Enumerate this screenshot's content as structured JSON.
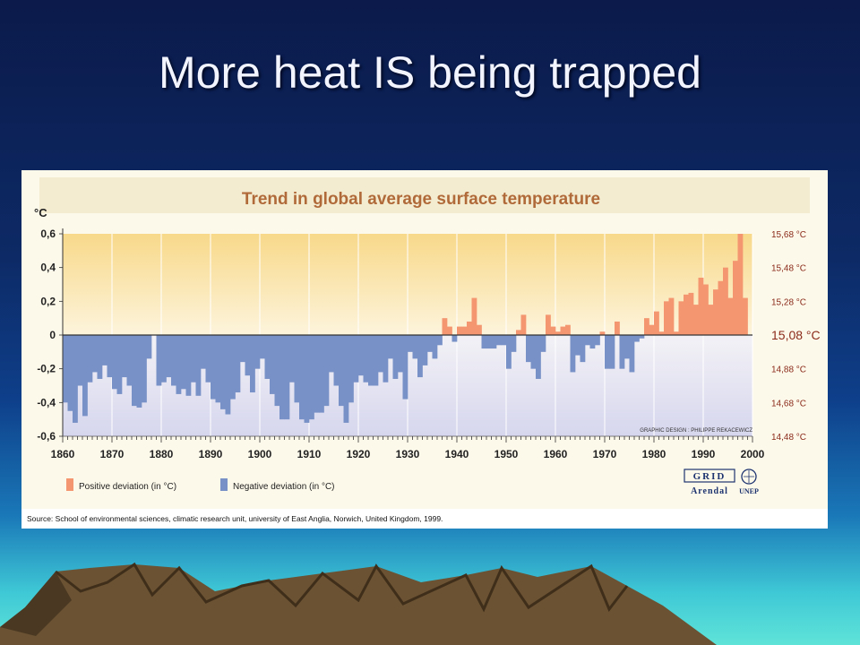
{
  "slide": {
    "title": "More heat IS being trapped"
  },
  "chart_data": {
    "type": "bar",
    "title": "Trend in global average surface temperature",
    "ylabel": "°C",
    "ylim": [
      -0.6,
      0.6
    ],
    "xlim": [
      1860,
      2000
    ],
    "x_ticks": [
      "1860",
      "1870",
      "1880",
      "1890",
      "1900",
      "1910",
      "1920",
      "1930",
      "1940",
      "1950",
      "1960",
      "1970",
      "1980",
      "1990",
      "2000"
    ],
    "y_ticks": [
      "0,6",
      "0,4",
      "0,2",
      "0",
      "-0,2",
      "-0,4",
      "-0,6"
    ],
    "right_ticks": [
      {
        "value": 0.6,
        "label": "15,68 °C"
      },
      {
        "value": 0.4,
        "label": "15,48 °C"
      },
      {
        "value": 0.2,
        "label": "15,28 °C"
      },
      {
        "value": 0.0,
        "label": "15,08 °C"
      },
      {
        "value": -0.2,
        "label": "14,88 °C"
      },
      {
        "value": -0.4,
        "label": "14,68 °C"
      },
      {
        "value": -0.6,
        "label": "14,48 °C"
      }
    ],
    "start_year": 1860,
    "values": [
      -0.4,
      -0.45,
      -0.52,
      -0.3,
      -0.48,
      -0.28,
      -0.22,
      -0.26,
      -0.18,
      -0.25,
      -0.32,
      -0.35,
      -0.25,
      -0.3,
      -0.42,
      -0.43,
      -0.4,
      -0.14,
      0.0,
      -0.3,
      -0.28,
      -0.25,
      -0.3,
      -0.35,
      -0.32,
      -0.36,
      -0.28,
      -0.36,
      -0.2,
      -0.28,
      -0.38,
      -0.4,
      -0.44,
      -0.47,
      -0.38,
      -0.34,
      -0.16,
      -0.24,
      -0.34,
      -0.2,
      -0.14,
      -0.26,
      -0.35,
      -0.42,
      -0.5,
      -0.5,
      -0.28,
      -0.4,
      -0.5,
      -0.52,
      -0.5,
      -0.46,
      -0.46,
      -0.42,
      -0.22,
      -0.3,
      -0.42,
      -0.52,
      -0.4,
      -0.28,
      -0.24,
      -0.28,
      -0.3,
      -0.3,
      -0.22,
      -0.28,
      -0.14,
      -0.26,
      -0.22,
      -0.38,
      -0.1,
      -0.14,
      -0.25,
      -0.18,
      -0.1,
      -0.14,
      -0.06,
      0.1,
      0.05,
      -0.04,
      0.05,
      0.05,
      0.08,
      0.22,
      0.06,
      -0.08,
      -0.08,
      -0.08,
      -0.06,
      -0.06,
      -0.2,
      -0.1,
      0.03,
      0.12,
      -0.16,
      -0.2,
      -0.26,
      -0.1,
      0.12,
      0.05,
      0.02,
      0.05,
      0.06,
      -0.22,
      -0.12,
      -0.16,
      -0.06,
      -0.08,
      -0.06,
      0.02,
      -0.2,
      -0.2,
      0.08,
      -0.2,
      -0.14,
      -0.22,
      -0.04,
      -0.02,
      0.1,
      0.06,
      0.14,
      0.02,
      0.2,
      0.22,
      0.02,
      0.2,
      0.24,
      0.25,
      0.18,
      0.34,
      0.3,
      0.18,
      0.27,
      0.32,
      0.4,
      0.22,
      0.44,
      0.6,
      0.22
    ],
    "legend": [
      {
        "label": "Positive deviation (in °C)",
        "color": "#f49670"
      },
      {
        "label": "Negative deviation (in °C)",
        "color": "#7891c6"
      }
    ],
    "credit": "GRAPHIC DESIGN : PHILIPPE REKACEWICZ",
    "source": "Source: School of environmental sciences, climatic research unit, university of East Anglia, Norwich, United Kingdom, 1999.",
    "logos": {
      "grid": "GRID",
      "arendal": "Arendal",
      "unep": "UNEP"
    },
    "colors": {
      "positive": "#f49670",
      "negative": "#7891c6",
      "warm_band": "#f9dc8a",
      "cool_band": "#dcdcf0"
    }
  }
}
